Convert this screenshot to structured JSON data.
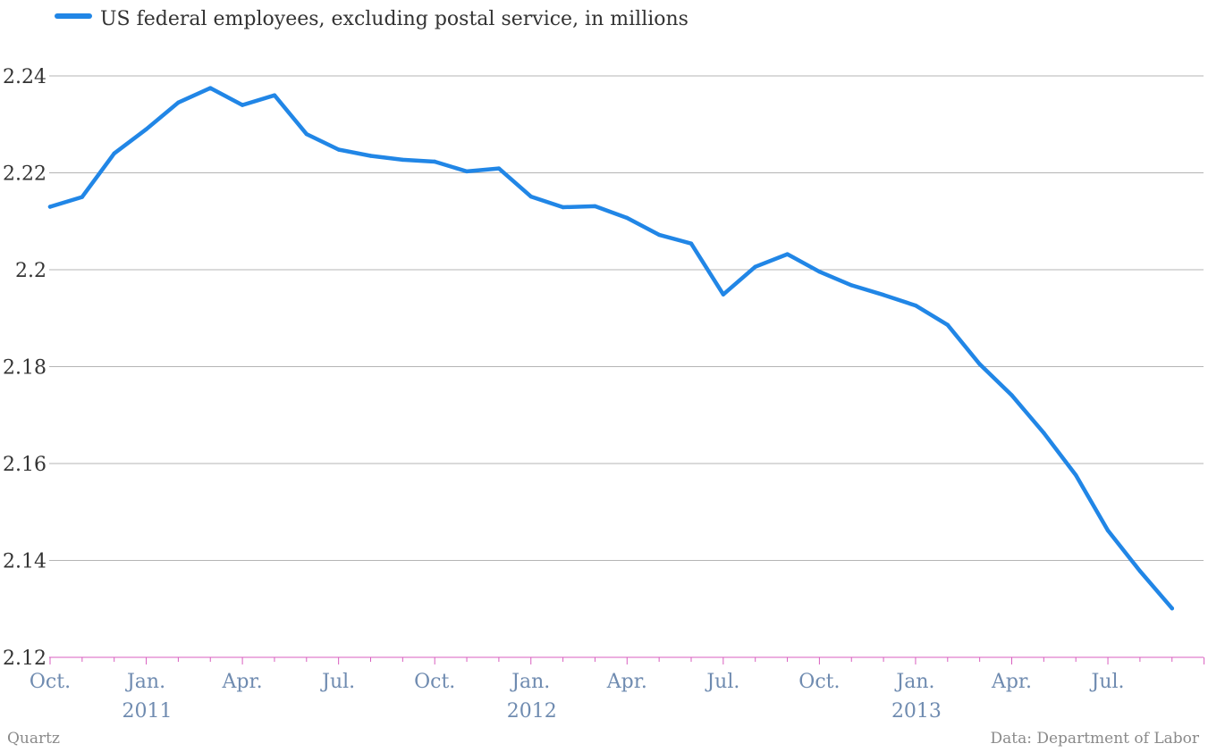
{
  "chart_data": {
    "type": "line",
    "legend": "US federal employees, excluding postal service, in millions",
    "legend_position": "top-left",
    "grid": true,
    "ylim": [
      2.12,
      2.24
    ],
    "yticks": [
      "2.12",
      "2.14",
      "2.16",
      "2.18",
      "2.2",
      "2.22",
      "2.24"
    ],
    "xtick_labels": [
      {
        "label": "Oct.",
        "month": "2010-10"
      },
      {
        "label": "Jan.",
        "month": "2011-01",
        "year": "2011"
      },
      {
        "label": "Apr.",
        "month": "2011-04"
      },
      {
        "label": "Jul.",
        "month": "2011-07"
      },
      {
        "label": "Oct.",
        "month": "2011-10"
      },
      {
        "label": "Jan.",
        "month": "2012-01",
        "year": "2012"
      },
      {
        "label": "Apr.",
        "month": "2012-04"
      },
      {
        "label": "Jul.",
        "month": "2012-07"
      },
      {
        "label": "Oct.",
        "month": "2012-10"
      },
      {
        "label": "Jan.",
        "month": "2013-01",
        "year": "2013"
      },
      {
        "label": "Apr.",
        "month": "2013-04"
      },
      {
        "label": "Jul.",
        "month": "2013-07"
      }
    ],
    "series": [
      {
        "name": "US federal employees, excluding postal service, in millions",
        "color": "#2186e6",
        "x": [
          "2010-10",
          "2010-11",
          "2010-12",
          "2011-01",
          "2011-02",
          "2011-03",
          "2011-04",
          "2011-05",
          "2011-06",
          "2011-07",
          "2011-08",
          "2011-09",
          "2011-10",
          "2011-11",
          "2011-12",
          "2012-01",
          "2012-02",
          "2012-03",
          "2012-04",
          "2012-05",
          "2012-06",
          "2012-07",
          "2012-08",
          "2012-09",
          "2012-10",
          "2012-11",
          "2012-12",
          "2013-01",
          "2013-02",
          "2013-03",
          "2013-04",
          "2013-05",
          "2013-06",
          "2013-07",
          "2013-08",
          "2013-09"
        ],
        "values": [
          2.213,
          2.215,
          2.224,
          2.229,
          2.2345,
          2.2375,
          2.234,
          2.236,
          2.228,
          2.2248,
          2.2235,
          2.2227,
          2.2223,
          2.2203,
          2.2209,
          2.2151,
          2.2129,
          2.2131,
          2.2107,
          2.2072,
          2.2054,
          2.1949,
          2.2006,
          2.2032,
          2.1996,
          2.1968,
          2.1948,
          2.1926,
          2.1886,
          2.1805,
          2.1741,
          2.1663,
          2.1576,
          2.1462,
          2.1378,
          2.1301
        ]
      }
    ]
  },
  "footer": {
    "source_left": "Quartz",
    "source_right": "Data: Department of Labor"
  },
  "colors": {
    "line": "#2186e6",
    "grid": "#b5b5b5",
    "baseline": "#d85fbf",
    "xtick_text": "#6f8bb0"
  }
}
